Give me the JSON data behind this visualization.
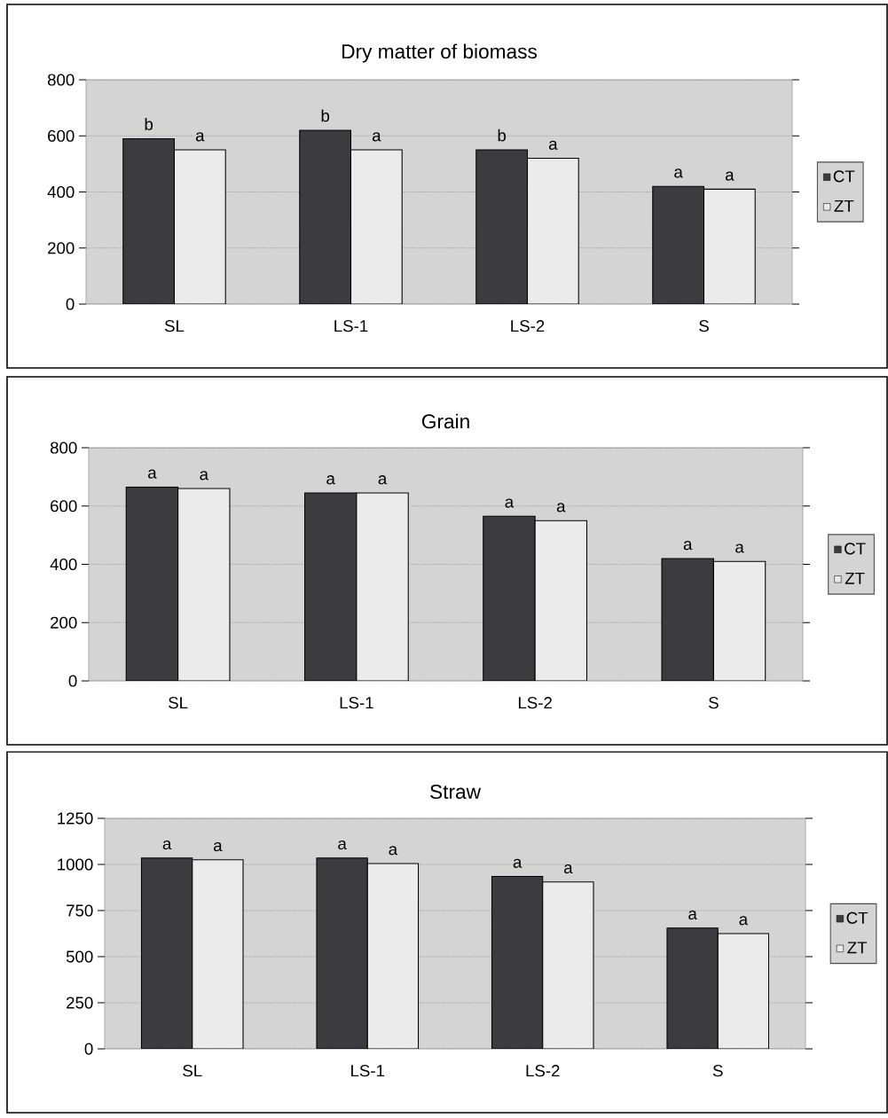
{
  "chart_data": [
    {
      "type": "bar",
      "title": "Dry matter of biomass",
      "categories": [
        "SL",
        "LS-1",
        "LS-2",
        "S"
      ],
      "series": [
        {
          "name": "CT",
          "color": "#3c3c40",
          "values": [
            590,
            620,
            550,
            420
          ],
          "value_labels": [
            "b",
            "b",
            "b",
            "a"
          ]
        },
        {
          "name": "ZT",
          "color": "#ebebeb",
          "values": [
            550,
            550,
            520,
            410
          ],
          "value_labels": [
            "a",
            "a",
            "a",
            "a"
          ]
        }
      ],
      "ylim": [
        0,
        800
      ],
      "yticks": [
        0,
        200,
        400,
        600,
        800
      ],
      "grid": "y",
      "legend": "right"
    },
    {
      "type": "bar",
      "title": "Grain",
      "categories": [
        "SL",
        "LS-1",
        "LS-2",
        "S"
      ],
      "series": [
        {
          "name": "CT",
          "color": "#3c3c40",
          "values": [
            665,
            645,
            565,
            420
          ],
          "value_labels": [
            "a",
            "a",
            "a",
            "a"
          ]
        },
        {
          "name": "ZT",
          "color": "#ebebeb",
          "values": [
            660,
            645,
            550,
            410
          ],
          "value_labels": [
            "a",
            "a",
            "a",
            "a"
          ]
        }
      ],
      "ylim": [
        0,
        800
      ],
      "yticks": [
        0,
        200,
        400,
        600,
        800
      ],
      "grid": "y",
      "legend": "right"
    },
    {
      "type": "bar",
      "title": "Straw",
      "categories": [
        "SL",
        "LS-1",
        "LS-2",
        "S"
      ],
      "series": [
        {
          "name": "CT",
          "color": "#3c3c40",
          "values": [
            1035,
            1035,
            935,
            655
          ],
          "value_labels": [
            "a",
            "a",
            "a",
            "a"
          ]
        },
        {
          "name": "ZT",
          "color": "#ebebeb",
          "values": [
            1025,
            1005,
            905,
            625
          ],
          "value_labels": [
            "a",
            "a",
            "a",
            "a"
          ]
        }
      ],
      "ylim": [
        0,
        1250
      ],
      "yticks": [
        0,
        250,
        500,
        750,
        1000,
        1250
      ],
      "grid": "y",
      "legend": "right"
    }
  ]
}
